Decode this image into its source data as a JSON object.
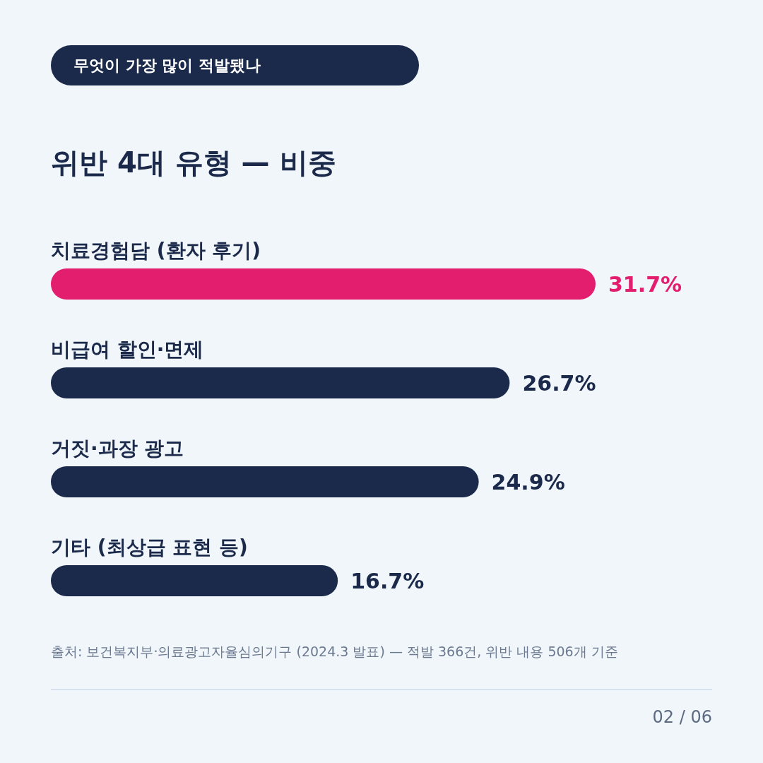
{
  "chart_data": {
    "type": "bar",
    "orientation": "horizontal",
    "subtitle": "무엇이 가장 많이 적발됐나",
    "title": "위반 4대 유형 — 비중",
    "categories": [
      "치료경험담 (환자 후기)",
      "비급여 할인·면제",
      "거짓·과장 광고",
      "기타 (최상급 표현 등)"
    ],
    "values": [
      31.7,
      26.7,
      24.9,
      16.7
    ],
    "colors": [
      "#e31e6f",
      "#1b2a4a",
      "#1b2a4a",
      "#1b2a4a"
    ],
    "value_labels": [
      "31.7%",
      "26.7%",
      "24.9%",
      "16.7%"
    ],
    "annotations": [
      "출처: 보건복지부·의료광고자율심의기구 (2024.3 발표) — 적발 366건, 위반 내용 506개 기준",
      "02 / 06"
    ]
  }
}
